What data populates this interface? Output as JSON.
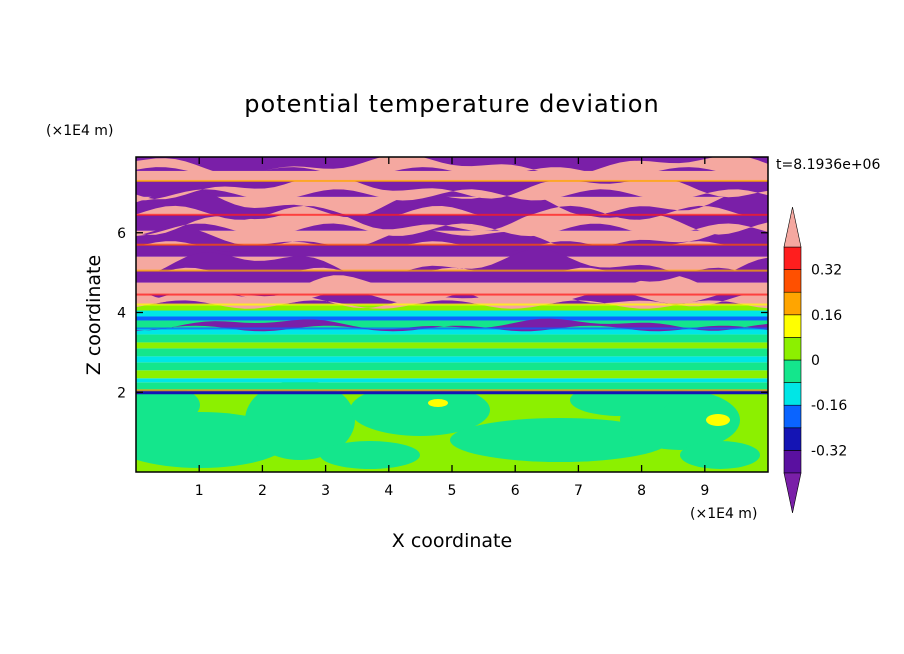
{
  "chart_data": {
    "type": "heatmap",
    "title": "potential temperature deviation",
    "xlabel": "X coordinate",
    "ylabel": "Z coordinate",
    "x_unit": "(×1E4 m)",
    "y_unit": "(×1E4 m)",
    "time_label": "t=8.1936e+06",
    "xlim": [
      0,
      10
    ],
    "ylim": [
      0,
      7.9
    ],
    "x_ticks": [
      1,
      2,
      3,
      4,
      5,
      6,
      7,
      8,
      9
    ],
    "y_ticks": [
      2,
      4,
      6
    ],
    "colorbar": {
      "levels": [
        -0.4,
        -0.32,
        -0.24,
        -0.16,
        -0.08,
        0,
        0.08,
        0.16,
        0.24,
        0.32,
        0.4
      ],
      "tick_labels": [
        "0.32",
        "0.16",
        "0",
        "-0.16",
        "-0.32"
      ],
      "tick_values": [
        0.32,
        0.16,
        0,
        -0.16,
        -0.32
      ],
      "extend": "both",
      "colors": {
        "below_min": "#7a1fa8",
        "bands": [
          "#5a10a0",
          "#1414b4",
          "#0a64ff",
          "#00e6e6",
          "#14e68c",
          "#8cf000",
          "#ffff00",
          "#ffa500",
          "#ff5000",
          "#ff1e1e"
        ],
        "above_max": "#f5a8a0"
      }
    },
    "layers": [
      {
        "z_range": [
          0,
          1.9
        ],
        "field": "mixed",
        "dominant": [
          "#8cf000",
          "#14e68c"
        ],
        "description": "green/lime turbulent boundary layer"
      },
      {
        "z_range": [
          1.9,
          2.05
        ],
        "field": "negative",
        "dominant": [
          "#1414b4"
        ]
      },
      {
        "z_range": [
          2.05,
          3.6
        ],
        "field": "near_zero",
        "dominant": [
          "#14e68c",
          "#00e6e6",
          "#8cf000"
        ]
      },
      {
        "z_range": [
          3.6,
          4.2
        ],
        "field": "transition",
        "dominant": [
          "#00e6e6",
          "#0a64ff",
          "#7a1fa8"
        ]
      },
      {
        "z_range": [
          4.2,
          7.9
        ],
        "field": "alternating",
        "dominant": [
          "#7a1fa8",
          "#f5a8a0"
        ]
      }
    ]
  }
}
